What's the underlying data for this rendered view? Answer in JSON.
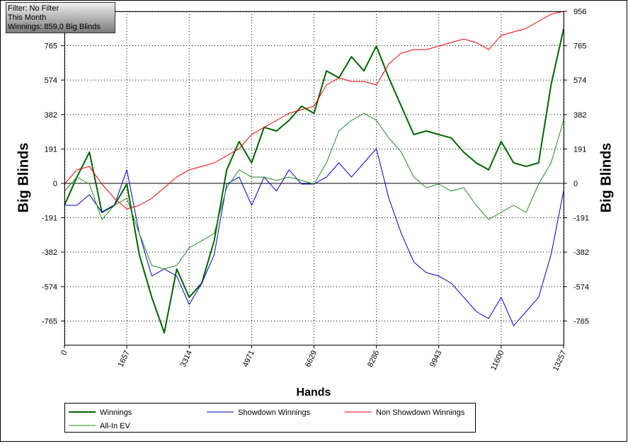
{
  "chart_data": {
    "type": "line",
    "annotations": [
      "Filter: No Filter",
      "This Month",
      "Winnings: 859,0 Big Blinds"
    ],
    "xlabel": "Hands",
    "ylabel": "Big Blinds",
    "x": [
      0,
      331,
      663,
      994,
      1326,
      1657,
      1989,
      2320,
      2651,
      2983,
      3314,
      3646,
      3977,
      4309,
      4640,
      4971,
      5303,
      5634,
      5966,
      6297,
      6629,
      6960,
      7291,
      7623,
      7954,
      8286,
      8617,
      8948,
      9280,
      9611,
      9943,
      10274,
      10605,
      10937,
      11268,
      11600,
      11931,
      12262,
      12594,
      12925,
      13257
    ],
    "xlim": [
      0,
      13257
    ],
    "xticks": [
      0,
      1657,
      3314,
      4971,
      6629,
      8286,
      9943,
      11600,
      13257
    ],
    "ylim": [
      -897,
      956
    ],
    "yticks": [
      -765,
      -574,
      -382,
      -191,
      0,
      191,
      382,
      574,
      765,
      956
    ],
    "grid": true,
    "legend": "bottom",
    "series": [
      {
        "name": "Winnings",
        "color": "#006400",
        "width": 2,
        "values": [
          -122,
          35,
          173,
          -161,
          -122,
          -4,
          -397,
          -633,
          -830,
          -476,
          -633,
          -555,
          -319,
          75,
          232,
          114,
          311,
          291,
          350,
          429,
          389,
          625,
          586,
          704,
          625,
          763,
          586,
          429,
          271,
          291,
          271,
          252,
          173,
          114,
          75,
          232,
          114,
          94,
          114,
          547,
          859
        ]
      },
      {
        "name": "Showdown Winnings",
        "color": "#0000cc",
        "width": 1,
        "values": [
          -122,
          -122,
          -63,
          -161,
          -122,
          75,
          -279,
          -515,
          -476,
          -515,
          -673,
          -555,
          -397,
          -4,
          35,
          -122,
          35,
          -43,
          75,
          -4,
          -4,
          35,
          114,
          35,
          114,
          193,
          -83,
          -279,
          -437,
          -496,
          -515,
          -555,
          -633,
          -712,
          -751,
          -633,
          -791,
          -712,
          -633,
          -397,
          -43
        ]
      },
      {
        "name": "Non Showdown Winnings",
        "color": "#ee0000",
        "width": 1,
        "values": [
          -4,
          75,
          94,
          -4,
          -83,
          -142,
          -122,
          -83,
          -24,
          35,
          75,
          94,
          114,
          153,
          193,
          271,
          311,
          350,
          389,
          409,
          429,
          547,
          586,
          566,
          566,
          547,
          665,
          724,
          743,
          743,
          763,
          783,
          802,
          783,
          743,
          822,
          842,
          861,
          901,
          940,
          956
        ]
      },
      {
        "name": "All-In EV",
        "color": "#228b22",
        "width": 1,
        "values": [
          -43,
          35,
          -4,
          -201,
          -122,
          -83,
          -279,
          -456,
          -476,
          -456,
          -358,
          -319,
          -279,
          -24,
          75,
          35,
          35,
          16,
          35,
          16,
          -4,
          114,
          291,
          350,
          389,
          350,
          252,
          173,
          35,
          -24,
          -4,
          -43,
          -24,
          -122,
          -201,
          -161,
          -122,
          -161,
          -4,
          114,
          350
        ]
      }
    ]
  }
}
